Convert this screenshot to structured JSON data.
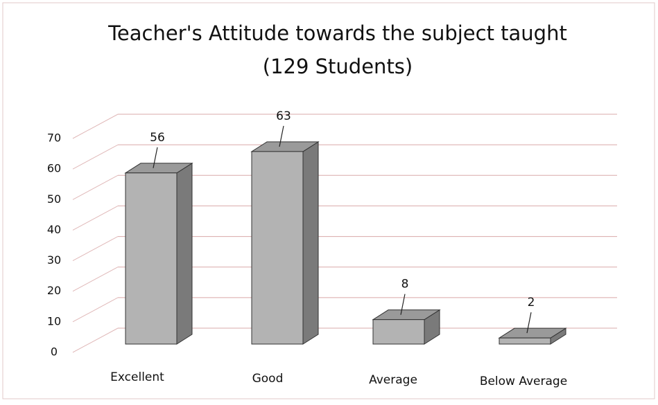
{
  "chart_data": {
    "type": "bar",
    "title": "Teacher's Attitude towards the subject taught",
    "subtitle": "(129 Students)",
    "categories": [
      "Excellent",
      "Good",
      "Average",
      "Below Average"
    ],
    "values": [
      56,
      63,
      8,
      2
    ],
    "color": "#b3b3b3",
    "ylim": [
      0,
      70
    ],
    "yticks": [
      0,
      10,
      20,
      30,
      40,
      50,
      60,
      70
    ],
    "grid": true
  }
}
